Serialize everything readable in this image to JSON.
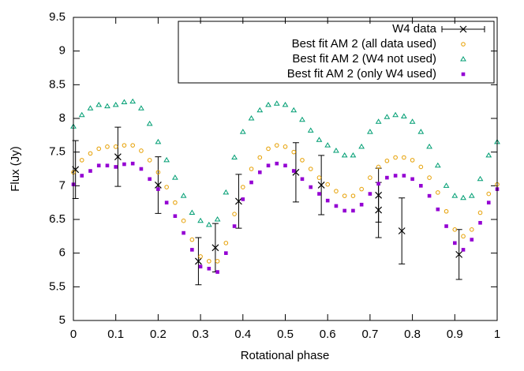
{
  "chart_data": {
    "type": "scatter",
    "xlabel": "Rotational phase",
    "ylabel": "Flux (Jy)",
    "xlim": [
      0,
      1
    ],
    "ylim": [
      5,
      9.5
    ],
    "xticks": [
      0,
      0.1,
      0.2,
      0.3,
      0.4,
      0.5,
      0.6,
      0.7,
      0.8,
      0.9,
      1
    ],
    "yticks": [
      5,
      5.5,
      6,
      6.5,
      7,
      7.5,
      8,
      8.5,
      9,
      9.5
    ],
    "grid": false,
    "legend": "top-right",
    "x": [
      0,
      0.02,
      0.04,
      0.06,
      0.08,
      0.1,
      0.12,
      0.14,
      0.16,
      0.18,
      0.2,
      0.22,
      0.24,
      0.26,
      0.28,
      0.3,
      0.32,
      0.34,
      0.36,
      0.38,
      0.4,
      0.42,
      0.44,
      0.46,
      0.48,
      0.5,
      0.52,
      0.54,
      0.56,
      0.58,
      0.6,
      0.62,
      0.64,
      0.66,
      0.68,
      0.7,
      0.72,
      0.74,
      0.76,
      0.78,
      0.8,
      0.82,
      0.84,
      0.86,
      0.88,
      0.9,
      0.92,
      0.94,
      0.96,
      0.98,
      1
    ],
    "series": [
      {
        "name": "W4 data",
        "color": "#000000",
        "marker": "x",
        "x": [
          0.005,
          0.105,
          0.2,
          0.295,
          0.335,
          0.39,
          0.525,
          0.585,
          0.72,
          0.72,
          0.775,
          0.91
        ],
        "values": [
          7.24,
          7.43,
          7.01,
          5.88,
          6.08,
          6.77,
          7.2,
          7.01,
          6.86,
          6.64,
          6.33,
          5.98
        ],
        "errors": [
          0.43,
          0.44,
          0.42,
          0.35,
          0.36,
          0.4,
          0.44,
          0.44,
          0.4,
          0.41,
          0.49,
          0.37
        ]
      },
      {
        "name": "Best fit AM 2 (all data used)",
        "color": "#e69f00",
        "marker": "circle",
        "values": [
          7.2,
          7.38,
          7.48,
          7.55,
          7.58,
          7.58,
          7.6,
          7.6,
          7.52,
          7.38,
          7.2,
          6.98,
          6.75,
          6.48,
          6.2,
          5.95,
          5.88,
          5.88,
          6.15,
          6.58,
          6.98,
          7.25,
          7.42,
          7.55,
          7.6,
          7.58,
          7.5,
          7.38,
          7.25,
          7.12,
          7.02,
          6.92,
          6.85,
          6.85,
          6.95,
          7.12,
          7.28,
          7.37,
          7.42,
          7.42,
          7.38,
          7.28,
          7.12,
          6.9,
          6.62,
          6.35,
          6.25,
          6.35,
          6.6,
          6.88,
          7.02
        ]
      },
      {
        "name": "Best fit AM 2 (W4 not used)",
        "color": "#009e73",
        "marker": "triangle",
        "values": [
          7.88,
          8.05,
          8.15,
          8.2,
          8.18,
          8.2,
          8.24,
          8.25,
          8.15,
          7.92,
          7.65,
          7.38,
          7.12,
          6.85,
          6.6,
          6.48,
          6.42,
          6.5,
          6.9,
          7.42,
          7.8,
          8.0,
          8.12,
          8.2,
          8.22,
          8.2,
          8.12,
          7.98,
          7.82,
          7.68,
          7.6,
          7.52,
          7.45,
          7.45,
          7.58,
          7.8,
          7.95,
          8.02,
          8.05,
          8.03,
          7.95,
          7.8,
          7.58,
          7.3,
          7.0,
          6.85,
          6.82,
          6.85,
          7.1,
          7.45,
          7.65
        ]
      },
      {
        "name": "Best fit AM 2 (only W4 used)",
        "color": "#9400d3",
        "marker": "square",
        "values": [
          7.02,
          7.15,
          7.22,
          7.3,
          7.3,
          7.28,
          7.32,
          7.33,
          7.25,
          7.1,
          6.95,
          6.75,
          6.55,
          6.3,
          6.05,
          5.8,
          5.77,
          5.72,
          6.0,
          6.4,
          6.8,
          7.05,
          7.2,
          7.3,
          7.33,
          7.3,
          7.22,
          7.1,
          6.98,
          6.88,
          6.78,
          6.7,
          6.63,
          6.63,
          6.72,
          6.88,
          7.03,
          7.12,
          7.15,
          7.15,
          7.1,
          7.0,
          6.85,
          6.65,
          6.4,
          6.15,
          6.05,
          6.2,
          6.45,
          6.75,
          6.95
        ]
      }
    ]
  }
}
